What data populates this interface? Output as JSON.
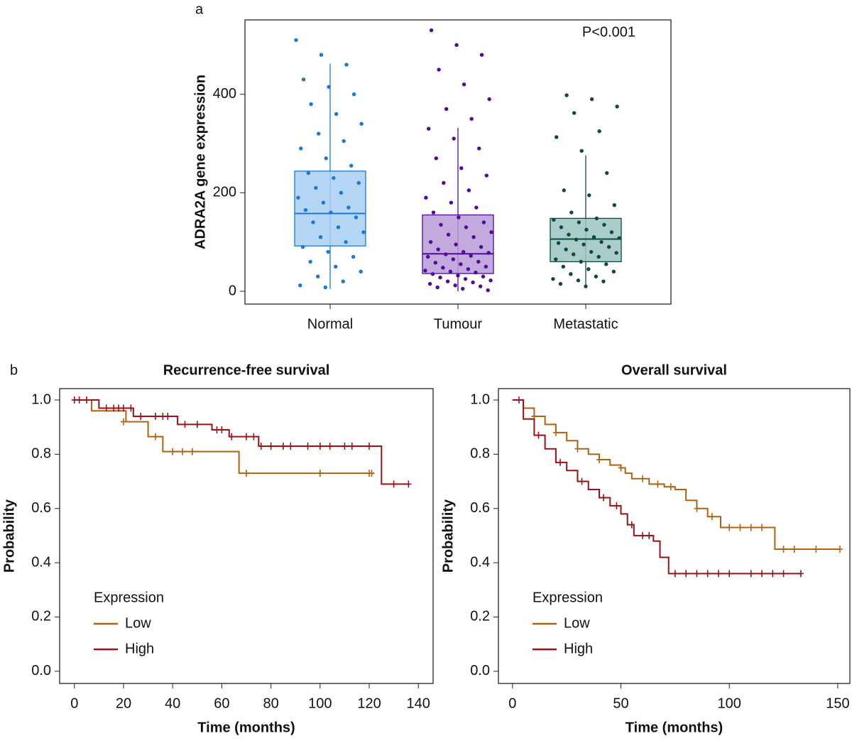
{
  "chart_data": [
    {
      "type": "box",
      "panel_label": "a",
      "y_label": "ADRA2A gene expression",
      "annotation": "P<0.001",
      "categories": [
        "Normal",
        "Tumour",
        "Metastatic"
      ],
      "colors": [
        "#1a78d6",
        "#520a9c",
        "#0d4a47"
      ],
      "box_fills": [
        "#a9cff3",
        "#b79ad8",
        "#9cc4c0"
      ],
      "boxes": [
        {
          "low": 5,
          "q1": 92,
          "median": 158,
          "q3": 244,
          "high": 462
        },
        {
          "low": 0,
          "q1": 36,
          "median": 76,
          "q3": 155,
          "high": 332
        },
        {
          "low": 7,
          "q1": 60,
          "median": 106,
          "q3": 148,
          "high": 276
        }
      ],
      "points": [
        [
          510,
          480,
          460,
          430,
          415,
          400,
          380,
          360,
          340,
          320,
          305,
          290,
          270,
          255,
          240,
          230,
          220,
          210,
          200,
          190,
          180,
          170,
          165,
          160,
          150,
          140,
          130,
          120,
          110,
          100,
          90,
          80,
          70,
          60,
          50,
          40,
          30,
          20,
          12,
          8
        ],
        [
          530,
          500,
          480,
          450,
          420,
          390,
          370,
          350,
          330,
          310,
          290,
          270,
          250,
          235,
          220,
          205,
          190,
          180,
          170,
          160,
          150,
          140,
          135,
          130,
          120,
          115,
          110,
          100,
          95,
          90,
          85,
          80,
          78,
          75,
          72,
          70,
          65,
          60,
          58,
          55,
          50,
          48,
          45,
          42,
          40,
          38,
          35,
          32,
          30,
          28,
          25,
          22,
          20,
          18,
          15,
          12,
          10,
          8,
          5,
          2
        ],
        [
          398,
          390,
          375,
          362,
          325,
          313,
          285,
          240,
          205,
          195,
          175,
          160,
          148,
          145,
          140,
          135,
          130,
          125,
          120,
          115,
          110,
          108,
          105,
          100,
          98,
          95,
          90,
          85,
          80,
          78,
          75,
          70,
          65,
          60,
          55,
          50,
          45,
          40,
          35,
          30,
          25,
          22,
          20,
          15,
          10
        ]
      ],
      "ylim": [
        -26,
        551
      ],
      "yticks": [
        0,
        200,
        400
      ]
    },
    {
      "type": "step",
      "panel_label": "b",
      "title": "Recurrence-free survival",
      "x_label": "Time (months)",
      "y_label": "Probability",
      "legend_title": "Expression",
      "legend": "lower left",
      "xlim": [
        -6,
        146
      ],
      "xticks": [
        0,
        20,
        40,
        60,
        80,
        100,
        120,
        140
      ],
      "ylim": [
        -0.045,
        1.042
      ],
      "yticks": [
        {
          "value": 0,
          "label": "0.0"
        },
        0.2,
        0.4,
        0.6,
        0.8,
        {
          "value": 1,
          "label": "1.0"
        }
      ],
      "series": [
        {
          "name": "Low",
          "color": "#b0620f",
          "x": [
            0,
            7,
            21,
            30,
            36,
            67,
            122
          ],
          "values": [
            1,
            0.96,
            0.92,
            0.865,
            0.81,
            0.73,
            0.73
          ],
          "censored_x": [
            20,
            33,
            40,
            44,
            48,
            70,
            100,
            120,
            121
          ],
          "censored_values": [
            0.92,
            0.865,
            0.81,
            0.81,
            0.81,
            0.73,
            0.73,
            0.73,
            0.73
          ]
        },
        {
          "name": "High",
          "color": "#9a1118",
          "x": [
            0,
            10,
            24,
            42,
            56,
            63,
            75,
            125,
            136
          ],
          "values": [
            1,
            0.97,
            0.94,
            0.91,
            0.89,
            0.865,
            0.83,
            0.69,
            0.69
          ],
          "censored_x": [
            0,
            2,
            5,
            13,
            16,
            18,
            20,
            23,
            27,
            33,
            36,
            38,
            45,
            50,
            58,
            60,
            64,
            70,
            73,
            76,
            80,
            85,
            88,
            95,
            100,
            104,
            110,
            113,
            120,
            130,
            136
          ],
          "censored_values": [
            1,
            1,
            1,
            0.97,
            0.97,
            0.97,
            0.97,
            0.97,
            0.94,
            0.94,
            0.94,
            0.94,
            0.91,
            0.91,
            0.89,
            0.89,
            0.865,
            0.865,
            0.865,
            0.83,
            0.83,
            0.83,
            0.83,
            0.83,
            0.83,
            0.83,
            0.83,
            0.83,
            0.83,
            0.69,
            0.69
          ]
        }
      ]
    },
    {
      "type": "step",
      "title": "Overall survival",
      "x_label": "Time (months)",
      "y_label": "Probability",
      "legend_title": "Expression",
      "legend": "lower left",
      "xlim": [
        -6.5,
        155.6
      ],
      "xticks": [
        0,
        50,
        100,
        150
      ],
      "ylim": [
        -0.045,
        1.042
      ],
      "yticks": [
        {
          "value": 0,
          "label": "0.0"
        },
        0.2,
        0.4,
        0.6,
        0.8,
        {
          "value": 1,
          "label": "1.0"
        }
      ],
      "series": [
        {
          "name": "Low",
          "color": "#b0620f",
          "x": [
            0,
            5,
            10,
            15,
            20,
            25,
            30,
            35,
            40,
            45,
            50,
            52,
            55,
            63,
            70,
            75,
            80,
            85,
            90,
            96,
            119,
            121,
            151
          ],
          "values": [
            1,
            0.97,
            0.94,
            0.91,
            0.88,
            0.85,
            0.82,
            0.8,
            0.78,
            0.76,
            0.75,
            0.73,
            0.71,
            0.69,
            0.68,
            0.67,
            0.63,
            0.6,
            0.57,
            0.53,
            0.53,
            0.45,
            0.45
          ],
          "censored_x": [
            10,
            20,
            30,
            40,
            50,
            60,
            67,
            73,
            85,
            92,
            100,
            105,
            110,
            115,
            125,
            130,
            140,
            151
          ],
          "censored_values": [
            0.94,
            0.88,
            0.82,
            0.78,
            0.75,
            0.71,
            0.69,
            0.68,
            0.6,
            0.57,
            0.53,
            0.53,
            0.53,
            0.53,
            0.45,
            0.45,
            0.45,
            0.45
          ]
        },
        {
          "name": "High",
          "color": "#9a1118",
          "x": [
            0,
            5,
            10,
            15,
            20,
            25,
            30,
            35,
            40,
            45,
            50,
            53,
            56,
            65,
            68,
            72,
            133
          ],
          "values": [
            1,
            0.93,
            0.87,
            0.82,
            0.77,
            0.74,
            0.7,
            0.67,
            0.64,
            0.61,
            0.58,
            0.54,
            0.5,
            0.48,
            0.42,
            0.36,
            0.36
          ],
          "censored_x": [
            3,
            12,
            22,
            32,
            42,
            48,
            55,
            60,
            63,
            75,
            80,
            85,
            90,
            95,
            100,
            110,
            115,
            120,
            125,
            133
          ],
          "censored_values": [
            1,
            0.87,
            0.77,
            0.7,
            0.64,
            0.61,
            0.54,
            0.5,
            0.5,
            0.36,
            0.36,
            0.36,
            0.36,
            0.36,
            0.36,
            0.36,
            0.36,
            0.36,
            0.36,
            0.36
          ]
        }
      ]
    }
  ]
}
